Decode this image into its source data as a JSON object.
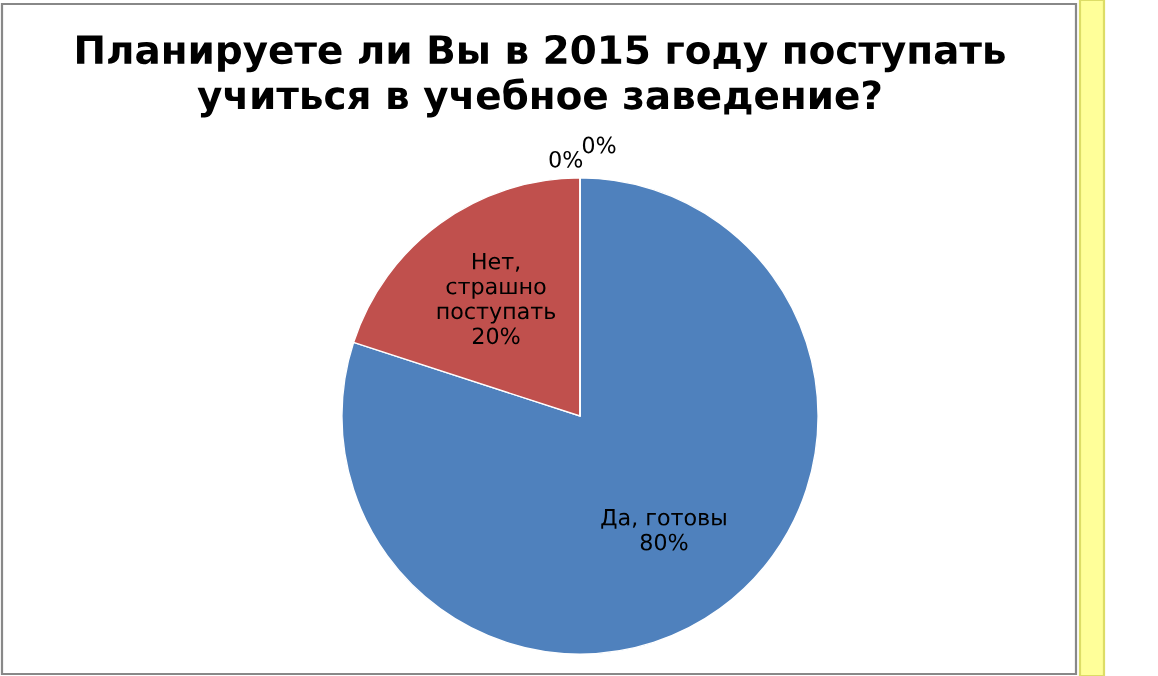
{
  "chart_data": {
    "type": "pie",
    "title": "Планируете ли Вы в 2015 году поступать\nучиться в учебное заведение?",
    "categories": [
      "Да, готовы",
      "Нет, страшно поступать",
      null,
      null
    ],
    "values": [
      80,
      20,
      0,
      0
    ],
    "colors": [
      "#4f81bd",
      "#c0504d",
      "#9bbb59",
      "#8064a2"
    ],
    "value_labels": [
      "80%",
      "20%",
      "0%",
      "0%"
    ],
    "legend": false
  }
}
